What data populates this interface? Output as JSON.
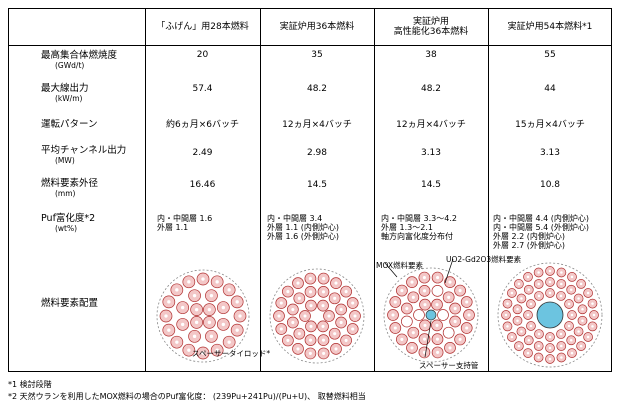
{
  "header": {
    "col1": "「ふげん」用28本燃料",
    "col2": "実証炉用36本燃料",
    "col3": "実証炉用\n高性能化36本燃料",
    "col4": "実証炉用54本燃料*1"
  },
  "rows": [
    {
      "label": "最高集合体燃焼度",
      "unit": "(GWd/t)",
      "values": [
        "20",
        "35",
        "38",
        "55"
      ]
    },
    {
      "label": "最大線出力",
      "unit": "(kW/m)",
      "values": [
        "57.4",
        "48.2",
        "48.2",
        "44"
      ]
    },
    {
      "label": "運転パターン",
      "unit": "",
      "values": [
        "約6ヵ月×6バッチ",
        "12ヵ月×4バッチ",
        "12ヵ月×4バッチ",
        "15ヵ月×4バッチ"
      ]
    },
    {
      "label": "平均チャンネル出力",
      "unit": "(MW)",
      "values": [
        "2.49",
        "2.98",
        "3.13",
        "3.13"
      ]
    },
    {
      "label": "燃料要素外径",
      "unit": "(mm)",
      "values": [
        "16.46",
        "14.5",
        "14.5",
        "10.8"
      ]
    }
  ],
  "puf": {
    "label": "Puf富化度*2",
    "unit": "(wt%)",
    "values": [
      "内・中間層  1.6\n外層  1.1",
      "内・中間層  3.4\n外層  1.1 (内側炉心)\n外層  1.6 (外側炉心)",
      "内・中間層  3.3～4.2\n外層  1.3～2.1\n軸方向富化度分布付",
      "内・中間層  4.4 (内側炉心)\n内・中間層  5.4 (外側炉心)\n外層  2.2 (内側炉心)\n外層  2.7 (外側炉心)"
    ]
  },
  "layout_row": {
    "label": "燃料要素配置",
    "annotations": {
      "spacer_rod": "スペーサータイロッド*",
      "mox": "MOX燃料要素",
      "uo2": "UO2-Gd2O3燃料要素",
      "spacer_tube": "スペーサー支持管"
    }
  },
  "notes": [
    "*1  検討段階",
    "*2  天然ウランを利用したMOX燃料の場合のPuf富化度：  (239Pu+241Pu)/(Pu+U)、 取替燃料相当"
  ],
  "colors": {
    "pin_fill": "#f3c7c7",
    "pin_stroke": "#b03030",
    "center": "#6cc4e0",
    "gd": "#ffffff"
  }
}
